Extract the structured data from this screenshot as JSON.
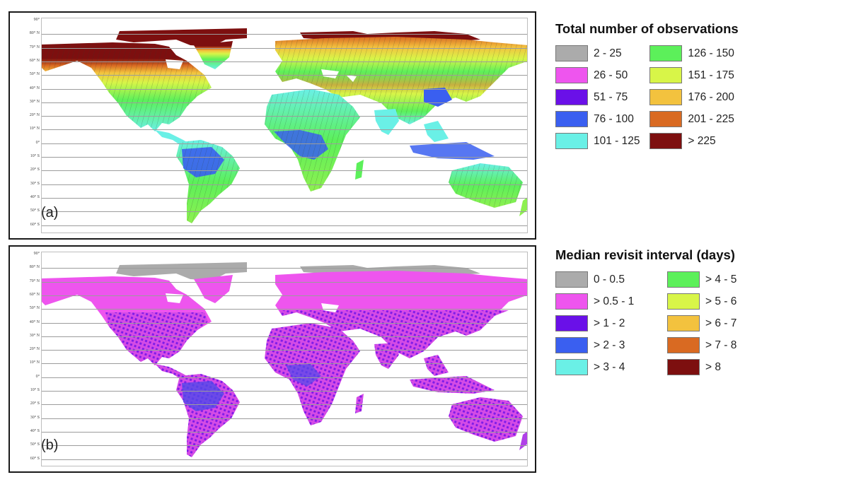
{
  "panels": [
    {
      "id": "a",
      "tag": "(a)",
      "legend": {
        "title": "Total number of observations",
        "items": [
          {
            "label": "2 - 25",
            "color": "#ababab"
          },
          {
            "label": "26 - 50",
            "color": "#ee55ee"
          },
          {
            "label": "51 - 75",
            "color": "#6a10e8"
          },
          {
            "label": "76 - 100",
            "color": "#3a5ff0"
          },
          {
            "label": "101 - 125",
            "color": "#6af0e6"
          },
          {
            "label": "126 - 150",
            "color": "#5cf05a"
          },
          {
            "label": "151 - 175",
            "color": "#d8f548"
          },
          {
            "label": "176 - 200",
            "color": "#f3c23e"
          },
          {
            "label": "201 - 225",
            "color": "#d96a22"
          },
          {
            "label": "> 225",
            "color": "#7d0f0f"
          }
        ]
      }
    },
    {
      "id": "b",
      "tag": "(b)",
      "legend": {
        "title": "Median revisit interval (days)",
        "items": [
          {
            "label": "0 - 0.5",
            "color": "#ababab"
          },
          {
            "label": "> 0.5 - 1",
            "color": "#ee55ee"
          },
          {
            "label": "> 1 - 2",
            "color": "#6a10e8"
          },
          {
            "label": "> 2 - 3",
            "color": "#3a5ff0"
          },
          {
            "label": "> 3 - 4",
            "color": "#6af0e6"
          },
          {
            "label": "> 4 - 5",
            "color": "#5cf05a"
          },
          {
            "label": "> 5 - 6",
            "color": "#d8f548"
          },
          {
            "label": "> 6 - 7",
            "color": "#f3c23e"
          },
          {
            "label": "> 7 - 8",
            "color": "#d96a22"
          },
          {
            "label": "> 8",
            "color": "#7d0f0f"
          }
        ]
      }
    }
  ],
  "latitude_labels": [
    "90°",
    "80° N",
    "70° N",
    "60° N",
    "50° N",
    "40° N",
    "30° N",
    "20° N",
    "10° N",
    "0°",
    "10° S",
    "20° S",
    "30° S",
    "40° S",
    "50° S",
    "60° S"
  ]
}
